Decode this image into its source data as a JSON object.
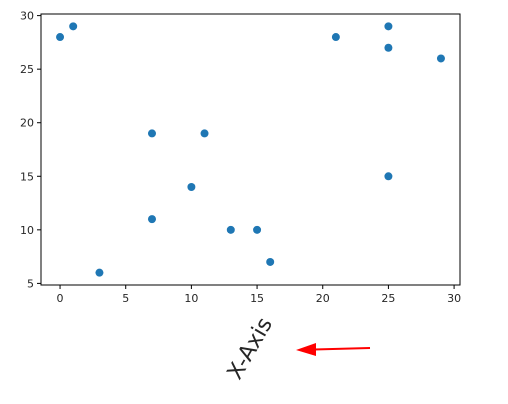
{
  "chart_data": {
    "type": "scatter",
    "title": "",
    "xlabel": "X-Axis",
    "ylabel": "",
    "xlim": [
      -1.45,
      30.45
    ],
    "ylim": [
      4.85,
      30.15
    ],
    "x_ticks": [
      0,
      5,
      10,
      15,
      20,
      25,
      30
    ],
    "y_ticks": [
      5,
      10,
      15,
      20,
      25,
      30
    ],
    "grid": false,
    "legend": "none",
    "marker_color": "#1f77b4",
    "annotation_arrow_color": "#ff0000",
    "points": [
      {
        "x": 0,
        "y": 28
      },
      {
        "x": 1,
        "y": 29
      },
      {
        "x": 3,
        "y": 6
      },
      {
        "x": 7,
        "y": 19
      },
      {
        "x": 7,
        "y": 11
      },
      {
        "x": 10,
        "y": 14
      },
      {
        "x": 11,
        "y": 19
      },
      {
        "x": 13,
        "y": 10
      },
      {
        "x": 15,
        "y": 10
      },
      {
        "x": 16,
        "y": 7
      },
      {
        "x": 21,
        "y": 28
      },
      {
        "x": 25,
        "y": 29
      },
      {
        "x": 25,
        "y": 27
      },
      {
        "x": 25,
        "y": 15
      },
      {
        "x": 29,
        "y": 26
      }
    ]
  }
}
